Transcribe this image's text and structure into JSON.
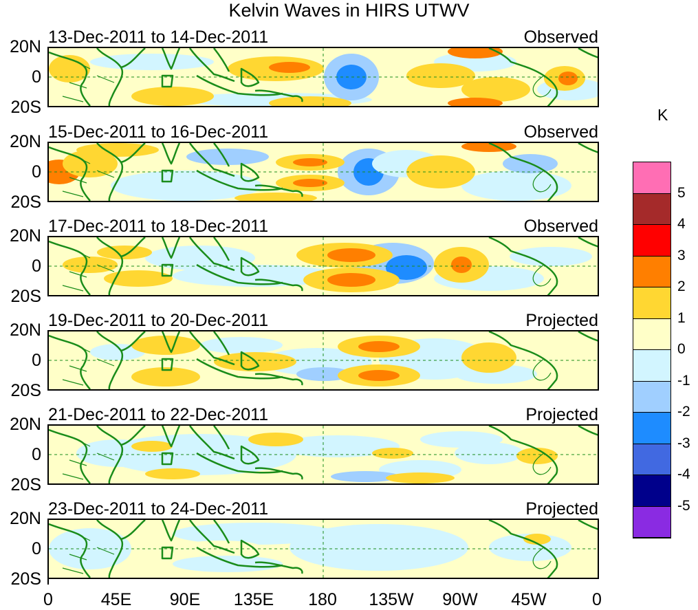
{
  "title": "Kelvin Waves in HIRS UTWV",
  "panels": [
    {
      "date": "13-Dec-2011 to 14-Dec-2011",
      "kind": "Observed"
    },
    {
      "date": "15-Dec-2011 to 16-Dec-2011",
      "kind": "Observed"
    },
    {
      "date": "17-Dec-2011 to 18-Dec-2011",
      "kind": "Observed"
    },
    {
      "date": "19-Dec-2011 to 20-Dec-2011",
      "kind": "Projected"
    },
    {
      "date": "21-Dec-2011 to 22-Dec-2011",
      "kind": "Projected"
    },
    {
      "date": "23-Dec-2011 to 24-Dec-2011",
      "kind": "Projected"
    }
  ],
  "lat_labels": [
    "20N",
    "0",
    "20S"
  ],
  "lon_labels": [
    "0",
    "45E",
    "90E",
    "135E",
    "180",
    "135W",
    "90W",
    "45W",
    "0"
  ],
  "colorbar": {
    "unit": "K",
    "labels": [
      "5",
      "4",
      "3",
      "2",
      "1",
      "0",
      "-1",
      "-2",
      "-3",
      "-4",
      "-5"
    ],
    "colors": [
      "#ff6eb4",
      "#a52a2a",
      "#ff0000",
      "#ff7f00",
      "#ffd732",
      "#ffffc8",
      "#d2f5ff",
      "#a0cfff",
      "#1e8cff",
      "#4169e1",
      "#00008b",
      "#8a2be2"
    ]
  },
  "map_colors": {
    "land": "#1a8c1a",
    "neutral": "#ffffc8",
    "cool": "#d2f5ff",
    "dash": "#1a8c1a"
  }
}
